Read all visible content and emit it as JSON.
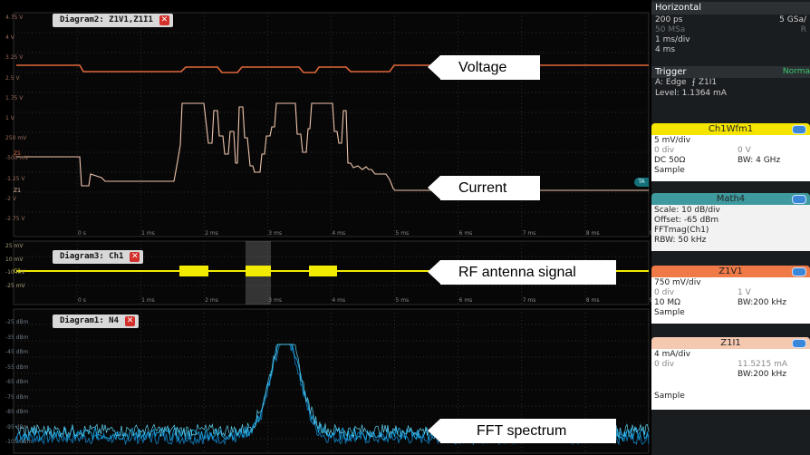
{
  "diagram2": {
    "tab_label": "Diagram2: Z1V1,Z1I1",
    "y_labels": [
      "4.75 V",
      "4 V",
      "3.25 V",
      "2.5 V",
      "1.75 V",
      "1 V",
      "250 mV",
      "-500 mV",
      "-1.25 V",
      "-2 V",
      "-2.75 V"
    ],
    "x_labels": [
      "0 s",
      "1 ms",
      "2 ms",
      "3 ms",
      "4 ms",
      "5 ms",
      "6 ms",
      "7 ms",
      "8 ms",
      "9 ms"
    ],
    "markers": [
      "Z1",
      "Z1",
      "TA"
    ]
  },
  "diagram3": {
    "tab_label": "Diagram3: Ch1",
    "y_labels": [
      "25 mV",
      "10 mV",
      "-10 mV",
      "-25 mV"
    ],
    "x_labels": [
      "0 s",
      "1 ms",
      "2 ms",
      "3 ms",
      "4 ms",
      "5 ms",
      "6 ms",
      "7 ms",
      "8 ms",
      "9 ms"
    ],
    "marker": "C1"
  },
  "diagram1": {
    "tab_label": "Diagram1: N4",
    "y_labels": [
      "-25 dBm",
      "-35 dBm",
      "-45 dBm",
      "-55 dBm",
      "-65 dBm",
      "-75 dBm",
      "-85 dBm",
      "-95 dBm",
      "-105 dBm"
    ]
  },
  "callouts": {
    "voltage": "Voltage",
    "current": "Current",
    "rf": "RF antenna signal",
    "fft": "FFT spectrum"
  },
  "horizontal": {
    "title": "Horizontal",
    "rows": [
      {
        "l": "200 ps",
        "r": "5 GSa/"
      },
      {
        "l": "50 MSa",
        "r": "R"
      },
      {
        "l": "1 ms/div",
        "r": ""
      },
      {
        "l": "4 ms",
        "r": ""
      }
    ]
  },
  "trigger": {
    "title": "Trigger",
    "mode": "Norma",
    "line1": "A:  Edge",
    "line1_src": "Z1I1",
    "level": "Level: 1.1364 mA"
  },
  "cards": [
    {
      "title": "Ch1Wfm1",
      "color": "#f4e400",
      "rows": [
        [
          "5 mV/div",
          ""
        ],
        [
          "0 div",
          "0 V"
        ],
        [
          "DC 50Ω",
          "BW: 4 GHz"
        ],
        [
          "Sample",
          ""
        ]
      ]
    },
    {
      "title": "Math4",
      "color": "#3e9a9e",
      "rows": [
        [
          "Scale:  10 dB/div",
          ""
        ],
        [
          "Offset: -65 dBm",
          ""
        ],
        [
          "FFTmag(Ch1)",
          ""
        ],
        [
          "RBW:  50 kHz",
          ""
        ]
      ]
    },
    {
      "title": "Z1V1",
      "color": "#f07a47",
      "rows": [
        [
          "750 mV/div",
          ""
        ],
        [
          "0 div",
          "1 V"
        ],
        [
          "10 MΩ",
          "BW:200 kHz"
        ],
        [
          "Sample",
          ""
        ]
      ]
    },
    {
      "title": "Z1I1",
      "color": "#f5c8b0",
      "rows": [
        [
          "4 mA/div",
          ""
        ],
        [
          "0 div",
          "11.5215 mA"
        ],
        [
          "",
          "BW:200 kHz"
        ],
        [
          "Sample",
          ""
        ]
      ]
    }
  ],
  "colors": {
    "voltage": "#e0663a",
    "current": "#f0c6ad",
    "rf": "#f2ea00",
    "fft": "#19a6e6",
    "panel": "#1a1d20"
  }
}
